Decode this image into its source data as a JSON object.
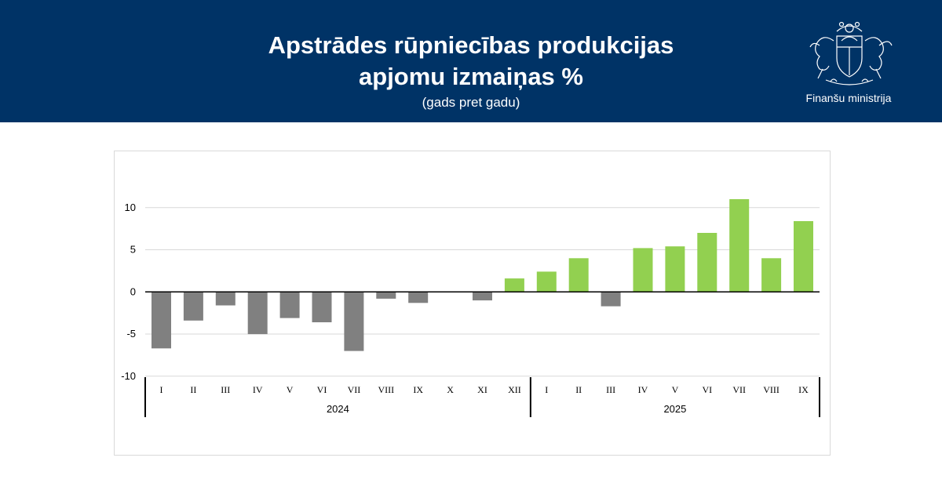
{
  "header": {
    "title_line1": "Apstrādes rūpniecības produkcijas",
    "title_line2": "apjomu izmaiņas %",
    "subtitle": "(gads pret gadu)",
    "ministry": "Finanšu ministrija",
    "background": "#003366"
  },
  "chart_data": {
    "type": "bar",
    "title": "Apstrādes rūpniecības produkcijas apjomu izmaiņas %",
    "subtitle": "(gads pret gadu)",
    "xlabel": "",
    "ylabel": "",
    "ylim": [
      -10,
      15
    ],
    "yticks": [
      10,
      5,
      0,
      -5,
      -10
    ],
    "grid": true,
    "groups": [
      {
        "year": "2024",
        "color": "#808080",
        "categories": [
          "I",
          "II",
          "III",
          "IV",
          "V",
          "VI",
          "VII",
          "VIII",
          "IX",
          "X",
          "XI",
          "XII"
        ],
        "values": [
          -6.7,
          -3.4,
          -1.6,
          -5.0,
          -3.1,
          -3.6,
          -7.0,
          -0.8,
          -1.3,
          0.0,
          -1.0,
          1.6
        ]
      },
      {
        "year": "2025",
        "color": "#92d050",
        "categories": [
          "I",
          "II",
          "III",
          "IV",
          "V",
          "VI",
          "VII",
          "VIII",
          "IX"
        ],
        "values": [
          2.4,
          4.0,
          -1.7,
          5.2,
          5.4,
          7.0,
          11.0,
          4.0,
          8.4
        ]
      }
    ],
    "colors": {
      "negative_2024": "#808080",
      "positive": "#92d050",
      "neg_2025": "#808080"
    }
  }
}
